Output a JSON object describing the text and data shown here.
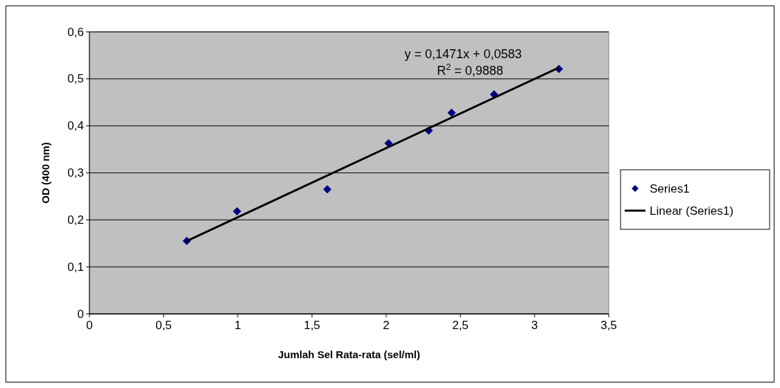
{
  "chart_data": {
    "type": "scatter",
    "xlabel": "Jumlah Sel Rata-rata (sel/ml)",
    "ylabel": "OD (400 nm)",
    "series": [
      {
        "name": "Series1",
        "color": "#000080",
        "marker": "diamond",
        "x": [
          0.656,
          0.995,
          1.603,
          2.016,
          2.287,
          2.441,
          2.727,
          3.164
        ],
        "values": [
          0.155,
          0.218,
          0.265,
          0.363,
          0.39,
          0.428,
          0.467,
          0.521
        ]
      },
      {
        "name": "Linear (Series1)",
        "type": "line",
        "color": "#000000",
        "line_style": "solid",
        "x": [
          0.656,
          3.164
        ],
        "values": [
          0.155,
          0.524
        ]
      }
    ],
    "xlim": [
      0,
      3.5
    ],
    "ylim": [
      0,
      0.6
    ],
    "xticks": [
      0,
      {
        "value": 0.5,
        "label": "0,5"
      },
      1,
      {
        "value": 1.5,
        "label": "1,5"
      },
      2,
      {
        "value": 2.5,
        "label": "2,5"
      },
      3,
      {
        "value": 3.5,
        "label": "3,5"
      }
    ],
    "yticks": [
      0,
      {
        "value": 0.1,
        "label": "0,1"
      },
      {
        "value": 0.2,
        "label": "0,2"
      },
      {
        "value": 0.3,
        "label": "0,3"
      },
      {
        "value": 0.4,
        "label": "0,4"
      },
      {
        "value": 0.5,
        "label": "0,5"
      },
      {
        "value": 0.6,
        "label": "0,6"
      }
    ],
    "grid": "y",
    "legend": "right",
    "annotations": [
      "y = 0,1471x + 0,0583",
      "R$^{2}$ = 0,9888"
    ]
  }
}
